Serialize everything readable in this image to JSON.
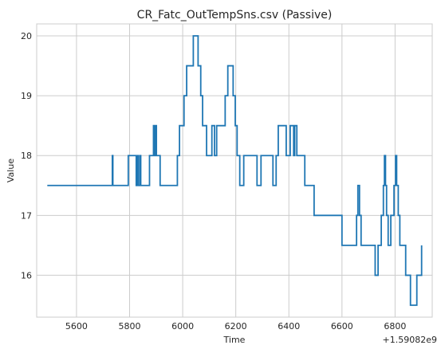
{
  "chart_data": {
    "type": "line",
    "title": "CR_Fatc_OutTempSns.csv (Passive)",
    "xlabel": "Time",
    "ylabel": "Value",
    "x_offset_label": "+1.59082e9",
    "xlim": [
      5450,
      6940
    ],
    "ylim": [
      15.3,
      20.2
    ],
    "grid": true,
    "step": true,
    "xticks": [
      5600,
      5800,
      6000,
      6200,
      6400,
      6600,
      6800
    ],
    "yticks": [
      16,
      17,
      18,
      19,
      20
    ],
    "series": [
      {
        "color": "#1f77b4",
        "points": [
          [
            5490,
            17.5
          ],
          [
            5735,
            17.5
          ],
          [
            5735,
            18.0
          ],
          [
            5737,
            18.0
          ],
          [
            5737,
            17.5
          ],
          [
            5795,
            17.5
          ],
          [
            5795,
            18.0
          ],
          [
            5825,
            18.0
          ],
          [
            5825,
            17.5
          ],
          [
            5828,
            17.5
          ],
          [
            5828,
            18.0
          ],
          [
            5832,
            18.0
          ],
          [
            5832,
            17.5
          ],
          [
            5838,
            17.5
          ],
          [
            5838,
            18.0
          ],
          [
            5842,
            18.0
          ],
          [
            5842,
            17.5
          ],
          [
            5875,
            17.5
          ],
          [
            5875,
            18.0
          ],
          [
            5890,
            18.0
          ],
          [
            5890,
            18.5
          ],
          [
            5894,
            18.5
          ],
          [
            5894,
            18.0
          ],
          [
            5897,
            18.0
          ],
          [
            5897,
            18.5
          ],
          [
            5901,
            18.5
          ],
          [
            5901,
            18.0
          ],
          [
            5915,
            18.0
          ],
          [
            5915,
            17.5
          ],
          [
            5980,
            17.5
          ],
          [
            5980,
            18.0
          ],
          [
            5988,
            18.0
          ],
          [
            5988,
            18.5
          ],
          [
            6005,
            18.5
          ],
          [
            6005,
            19.0
          ],
          [
            6015,
            19.0
          ],
          [
            6015,
            19.5
          ],
          [
            6040,
            19.5
          ],
          [
            6040,
            20.0
          ],
          [
            6058,
            20.0
          ],
          [
            6058,
            19.5
          ],
          [
            6068,
            19.5
          ],
          [
            6068,
            19.0
          ],
          [
            6075,
            19.0
          ],
          [
            6075,
            18.5
          ],
          [
            6090,
            18.5
          ],
          [
            6090,
            18.0
          ],
          [
            6110,
            18.0
          ],
          [
            6110,
            18.5
          ],
          [
            6120,
            18.5
          ],
          [
            6120,
            18.0
          ],
          [
            6128,
            18.0
          ],
          [
            6128,
            18.5
          ],
          [
            6160,
            18.5
          ],
          [
            6160,
            19.0
          ],
          [
            6170,
            19.0
          ],
          [
            6170,
            19.5
          ],
          [
            6190,
            19.5
          ],
          [
            6190,
            19.0
          ],
          [
            6198,
            19.0
          ],
          [
            6198,
            18.5
          ],
          [
            6205,
            18.5
          ],
          [
            6205,
            18.0
          ],
          [
            6215,
            18.0
          ],
          [
            6215,
            17.5
          ],
          [
            6230,
            17.5
          ],
          [
            6230,
            18.0
          ],
          [
            6280,
            18.0
          ],
          [
            6280,
            17.5
          ],
          [
            6295,
            17.5
          ],
          [
            6295,
            18.0
          ],
          [
            6340,
            18.0
          ],
          [
            6340,
            17.5
          ],
          [
            6352,
            17.5
          ],
          [
            6352,
            18.0
          ],
          [
            6360,
            18.0
          ],
          [
            6360,
            18.5
          ],
          [
            6390,
            18.5
          ],
          [
            6390,
            18.0
          ],
          [
            6405,
            18.0
          ],
          [
            6405,
            18.5
          ],
          [
            6418,
            18.5
          ],
          [
            6418,
            18.0
          ],
          [
            6422,
            18.0
          ],
          [
            6422,
            18.5
          ],
          [
            6430,
            18.5
          ],
          [
            6430,
            18.0
          ],
          [
            6460,
            18.0
          ],
          [
            6460,
            17.5
          ],
          [
            6495,
            17.5
          ],
          [
            6495,
            17.0
          ],
          [
            6600,
            17.0
          ],
          [
            6600,
            16.5
          ],
          [
            6655,
            16.5
          ],
          [
            6655,
            17.0
          ],
          [
            6660,
            17.0
          ],
          [
            6660,
            17.5
          ],
          [
            6666,
            17.5
          ],
          [
            6666,
            17.0
          ],
          [
            6672,
            17.0
          ],
          [
            6672,
            16.5
          ],
          [
            6725,
            16.5
          ],
          [
            6725,
            16.0
          ],
          [
            6736,
            16.0
          ],
          [
            6736,
            16.5
          ],
          [
            6748,
            16.5
          ],
          [
            6748,
            17.0
          ],
          [
            6756,
            17.0
          ],
          [
            6756,
            17.5
          ],
          [
            6760,
            17.5
          ],
          [
            6760,
            18.0
          ],
          [
            6764,
            18.0
          ],
          [
            6764,
            17.5
          ],
          [
            6768,
            17.5
          ],
          [
            6768,
            17.0
          ],
          [
            6774,
            17.0
          ],
          [
            6774,
            16.5
          ],
          [
            6784,
            16.5
          ],
          [
            6784,
            17.0
          ],
          [
            6796,
            17.0
          ],
          [
            6796,
            17.5
          ],
          [
            6802,
            17.5
          ],
          [
            6802,
            18.0
          ],
          [
            6806,
            18.0
          ],
          [
            6806,
            17.5
          ],
          [
            6812,
            17.5
          ],
          [
            6812,
            17.0
          ],
          [
            6818,
            17.0
          ],
          [
            6818,
            16.5
          ],
          [
            6840,
            16.5
          ],
          [
            6840,
            16.0
          ],
          [
            6858,
            16.0
          ],
          [
            6858,
            15.5
          ],
          [
            6882,
            15.5
          ],
          [
            6882,
            16.0
          ],
          [
            6900,
            16.0
          ],
          [
            6900,
            16.5
          ]
        ]
      }
    ]
  }
}
